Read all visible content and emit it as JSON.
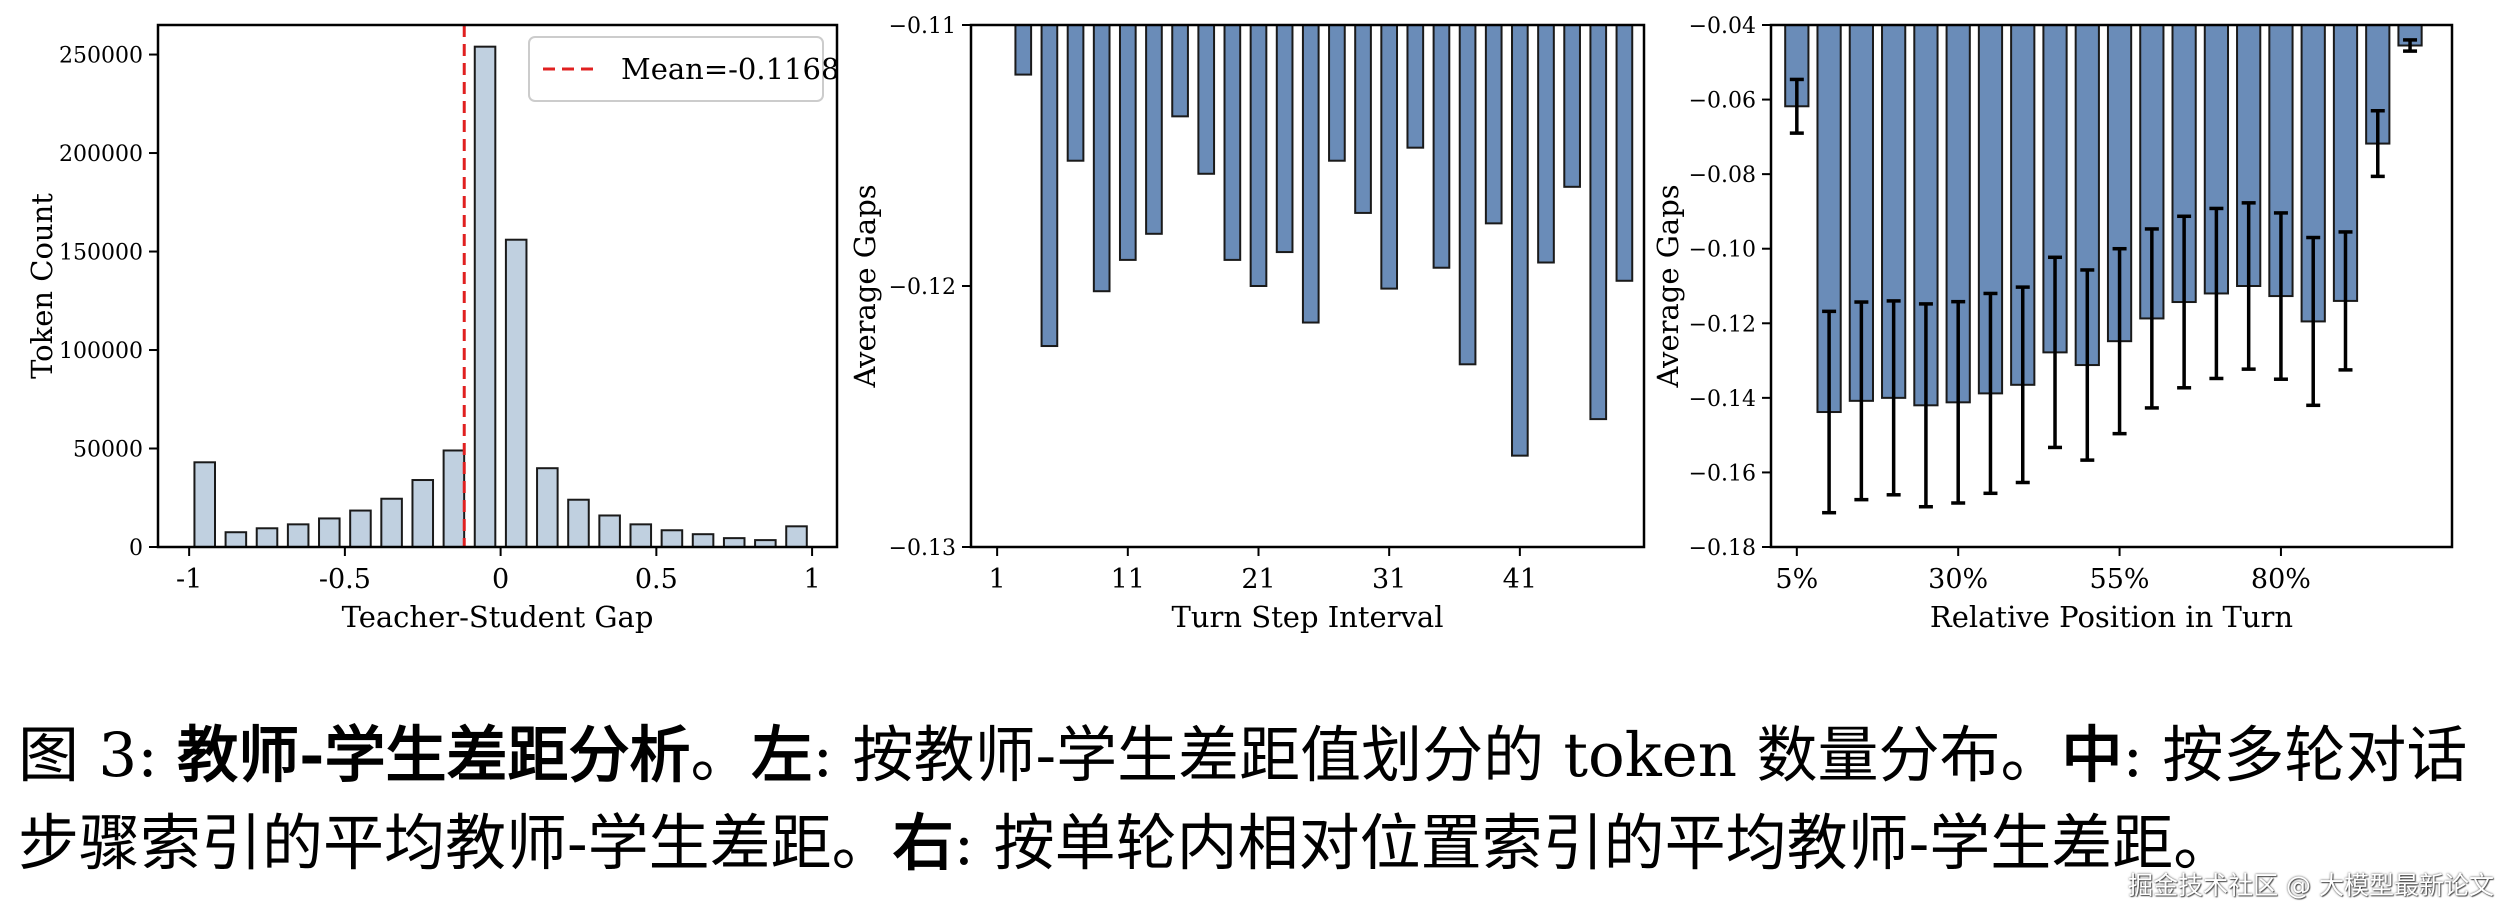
{
  "chart_data": [
    {
      "type": "bar",
      "xlabel": "Teacher-Student Gap",
      "ylabel": "Token Count",
      "xlim": [
        -1.1,
        1.08
      ],
      "ylim": [
        0,
        265000
      ],
      "xticks": [
        -1,
        -0.5,
        0,
        0.5,
        1
      ],
      "xtick_labels": [
        "-1",
        "-0.5",
        "0",
        "0.5",
        "1"
      ],
      "yticks": [
        0,
        50000,
        100000,
        150000,
        200000,
        250000
      ],
      "ytick_labels": [
        "0",
        "50000",
        "100000",
        "150000",
        "200000",
        "250000"
      ],
      "x": [
        -0.95,
        -0.85,
        -0.75,
        -0.65,
        -0.55,
        -0.45,
        -0.35,
        -0.25,
        -0.15,
        -0.05,
        0.05,
        0.15,
        0.25,
        0.35,
        0.45,
        0.55,
        0.65,
        0.75,
        0.85,
        0.95
      ],
      "values": [
        43000,
        7500,
        9500,
        11500,
        14500,
        18500,
        24500,
        34000,
        49000,
        254000,
        156000,
        40000,
        24000,
        16000,
        11500,
        8500,
        6500,
        4500,
        3500,
        10500
      ],
      "bar_width": 0.066,
      "bar_color": "#c0d0e0",
      "mean_line": {
        "x": -0.1168,
        "label": "Mean=-0.1168",
        "color": "#e02020"
      },
      "legend": "top-right",
      "grid": false
    },
    {
      "type": "bar",
      "xlabel": "Turn Step Interval",
      "ylabel": "Average Gaps",
      "xlim": [
        -1.0,
        50.5
      ],
      "ylim": [
        -0.13,
        -0.11
      ],
      "xticks": [
        1,
        11,
        21,
        31,
        41
      ],
      "xtick_labels": [
        "1",
        "11",
        "21",
        "31",
        "41"
      ],
      "yticks": [
        -0.13,
        -0.12,
        -0.11
      ],
      "ytick_labels": [
        "−0.13",
        "−0.12",
        "−0.11"
      ],
      "x": [
        3,
        5,
        7,
        9,
        11,
        13,
        15,
        17,
        19,
        21,
        23,
        25,
        27,
        29,
        31,
        33,
        35,
        37,
        39,
        41,
        43,
        45,
        47,
        49
      ],
      "values": [
        -0.1119,
        -0.1223,
        -0.1152,
        -0.1202,
        -0.119,
        -0.118,
        -0.1135,
        -0.1157,
        -0.119,
        -0.12,
        -0.1187,
        -0.1214,
        -0.1152,
        -0.1172,
        -0.1201,
        -0.1147,
        -0.1193,
        -0.123,
        -0.1176,
        -0.1265,
        -0.1191,
        -0.1162,
        -0.1251,
        -0.1198
      ],
      "bar_width": 1.2,
      "bar_color": "#6a8cb8",
      "grid": false
    },
    {
      "type": "bar",
      "xlabel": "Relative Position in Turn",
      "ylabel": "Average Gaps",
      "xlim": [
        -0.8,
        20.3
      ],
      "ylim": [
        -0.18,
        -0.04
      ],
      "xticks": [
        0,
        5,
        10,
        15
      ],
      "xtick_labels": [
        "5%",
        "30%",
        "55%",
        "80%"
      ],
      "yticks": [
        -0.18,
        -0.16,
        -0.14,
        -0.12,
        -0.1,
        -0.08,
        -0.06,
        -0.04
      ],
      "ytick_labels": [
        "−0.18",
        "−0.16",
        "−0.14",
        "−0.12",
        "−0.10",
        "−0.08",
        "−0.06",
        "−0.04"
      ],
      "x": [
        0,
        1,
        2,
        3,
        4,
        5,
        6,
        7,
        8,
        9,
        10,
        11,
        12,
        13,
        14,
        15,
        16,
        17,
        18,
        19
      ],
      "values": [
        -0.0618,
        -0.1438,
        -0.1408,
        -0.14,
        -0.142,
        -0.1412,
        -0.1388,
        -0.1365,
        -0.1278,
        -0.1312,
        -0.1248,
        -0.1187,
        -0.1143,
        -0.112,
        -0.11,
        -0.1127,
        -0.1195,
        -0.114,
        -0.0718,
        -0.0455
      ],
      "errors": [
        0.0072,
        0.027,
        0.0265,
        0.026,
        0.0272,
        0.027,
        0.0268,
        0.0262,
        0.0255,
        0.0255,
        0.0248,
        0.024,
        0.023,
        0.0228,
        0.0223,
        0.0223,
        0.0225,
        0.0185,
        0.0088,
        0.0015
      ],
      "bar_width": 0.72,
      "bar_color": "#6a8cb8",
      "grid": false
    }
  ],
  "caption": {
    "fig_prefix": "图 3: ",
    "title_bold": "教师-学生差距分析",
    "sep1": "。",
    "left_bold": "左",
    "left_text": ": 按教师-学生差距值划分的 token 数量分布。",
    "mid_bold": "中",
    "mid_text": ": 按多轮对话步骤索引的平均教师-学生差距。",
    "right_bold": "右",
    "right_text": ": 按单轮内相对位置索引的平均教师-学生差距。"
  },
  "watermark": "掘金技术社区 @ 大模型最新论文"
}
